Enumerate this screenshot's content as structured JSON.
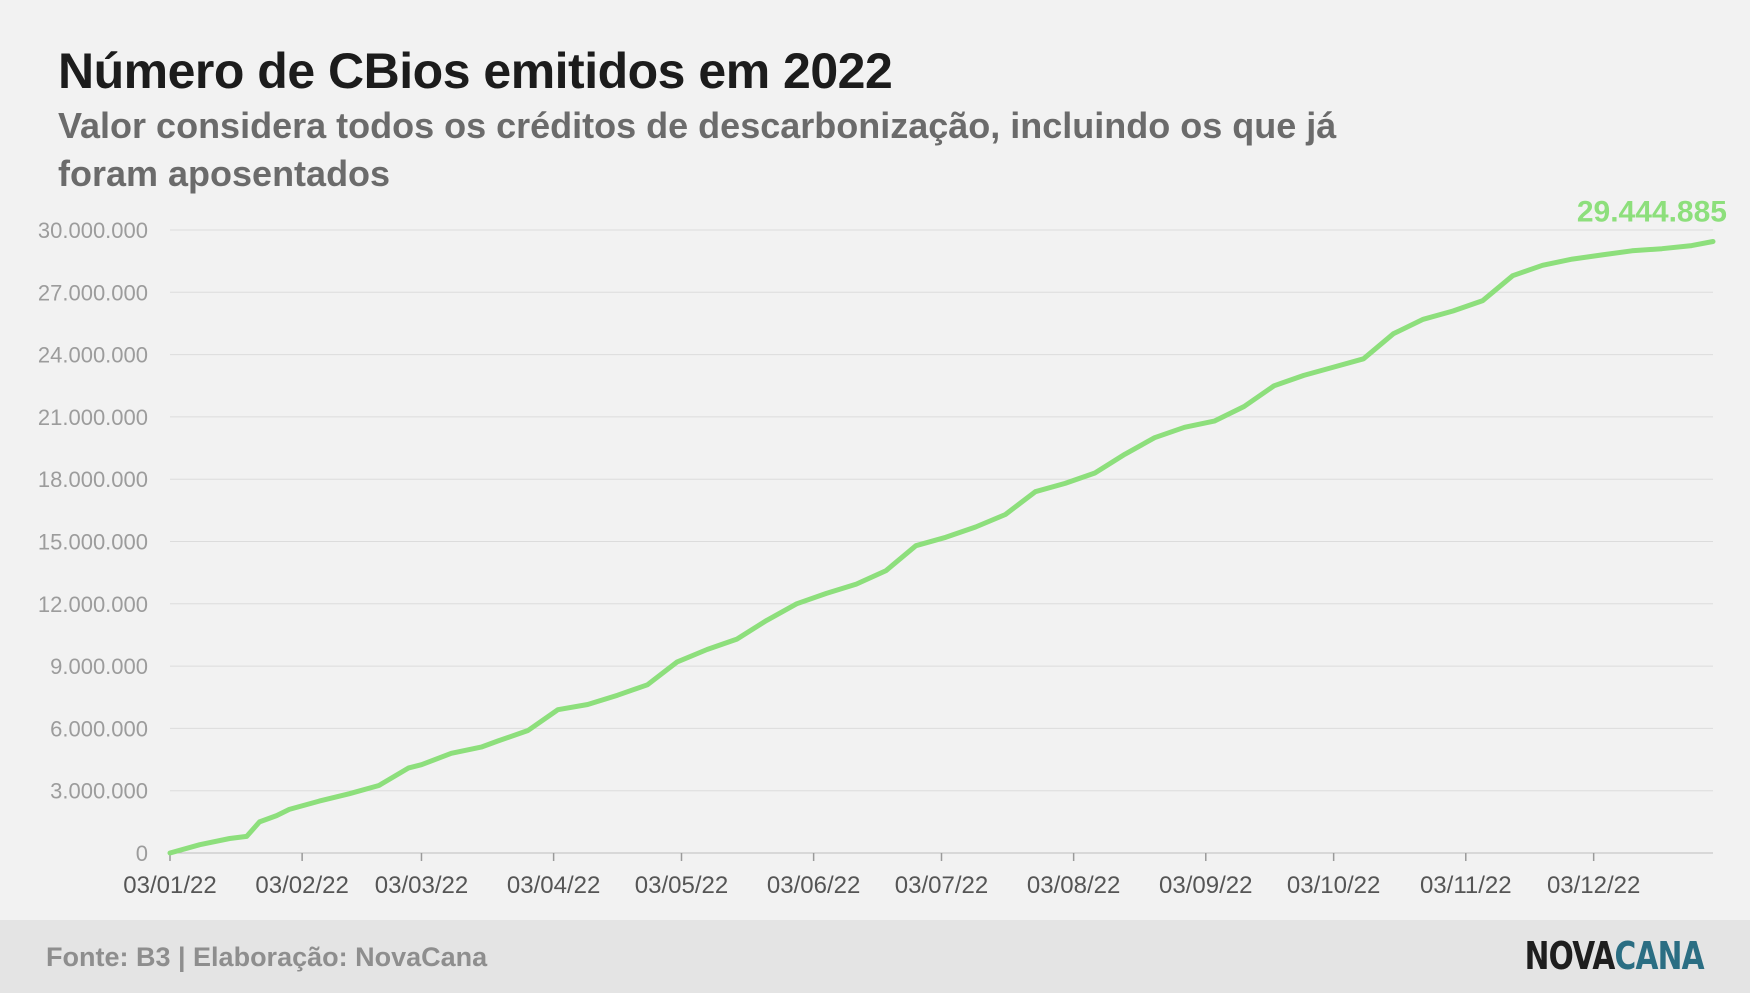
{
  "header": {
    "title": "Número de CBios emitidos em 2022",
    "subtitle": "Valor considera todos os créditos de descarbonização, incluindo os que já foram aposentados"
  },
  "footer": {
    "source": "Fonte: B3 | Elaboração: NovaCana",
    "logo_part1": "NOVA",
    "logo_part2": "CANA"
  },
  "colors": {
    "line": "#8ddf7c",
    "grid": "#dcdcdc",
    "background": "#f2f2f2"
  },
  "chart_data": {
    "type": "line",
    "title": "Número de CBios emitidos em 2022",
    "subtitle": "Valor considera todos os créditos de descarbonização, incluindo os que já foram aposentados",
    "xlabel": "",
    "ylabel": "",
    "ylim": [
      0,
      30000000
    ],
    "xlim": [
      "2022-01-03",
      "2022-12-31"
    ],
    "yticks": [
      0,
      3000000,
      6000000,
      9000000,
      12000000,
      15000000,
      18000000,
      21000000,
      24000000,
      27000000,
      30000000
    ],
    "ytick_labels": [
      "0",
      "3.000.000",
      "6.000.000",
      "9.000.000",
      "12.000.000",
      "15.000.000",
      "18.000.000",
      "21.000.000",
      "24.000.000",
      "27.000.000",
      "30.000.000"
    ],
    "xticks": [
      "2022-01-03",
      "2022-02-03",
      "2022-03-03",
      "2022-04-03",
      "2022-05-03",
      "2022-06-03",
      "2022-07-03",
      "2022-08-03",
      "2022-09-03",
      "2022-10-03",
      "2022-11-03",
      "2022-12-03"
    ],
    "xtick_labels": [
      "03/01/22",
      "03/02/22",
      "03/03/22",
      "03/04/22",
      "03/05/22",
      "03/06/22",
      "03/07/22",
      "03/08/22",
      "03/09/22",
      "03/10/22",
      "03/11/22",
      "03/12/22"
    ],
    "grid": true,
    "end_label": "29.444.885",
    "series": [
      {
        "x": [
          "2022-01-03",
          "2022-01-10",
          "2022-01-17",
          "2022-01-21",
          "2022-01-24",
          "2022-01-28",
          "2022-01-31",
          "2022-02-07",
          "2022-02-14",
          "2022-02-21",
          "2022-02-28",
          "2022-03-03",
          "2022-03-10",
          "2022-03-17",
          "2022-03-21",
          "2022-03-28",
          "2022-04-04",
          "2022-04-11",
          "2022-04-18",
          "2022-04-25",
          "2022-05-02",
          "2022-05-09",
          "2022-05-16",
          "2022-05-23",
          "2022-05-30",
          "2022-06-06",
          "2022-06-13",
          "2022-06-20",
          "2022-06-27",
          "2022-07-04",
          "2022-07-11",
          "2022-07-18",
          "2022-07-25",
          "2022-08-01",
          "2022-08-08",
          "2022-08-15",
          "2022-08-22",
          "2022-08-29",
          "2022-09-05",
          "2022-09-12",
          "2022-09-19",
          "2022-09-26",
          "2022-10-03",
          "2022-10-10",
          "2022-10-17",
          "2022-10-24",
          "2022-10-31",
          "2022-11-07",
          "2022-11-14",
          "2022-11-21",
          "2022-11-28",
          "2022-12-05",
          "2022-12-12",
          "2022-12-19",
          "2022-12-26",
          "2022-12-31"
        ],
        "y": [
          0,
          400000,
          700000,
          800000,
          1500000,
          1800000,
          2100000,
          2500000,
          2850000,
          3250000,
          4100000,
          4250000,
          4800000,
          5100000,
          5400000,
          5900000,
          6900000,
          7150000,
          7600000,
          8100000,
          9200000,
          9800000,
          10300000,
          11200000,
          12000000,
          12500000,
          12950000,
          13600000,
          14800000,
          15200000,
          15700000,
          16300000,
          17400000,
          17800000,
          18300000,
          19200000,
          20000000,
          20500000,
          20800000,
          21500000,
          22500000,
          23000000,
          23400000,
          23800000,
          25000000,
          25700000,
          26100000,
          26600000,
          27800000,
          28300000,
          28600000,
          28800000,
          29000000,
          29100000,
          29250000,
          29444885
        ]
      }
    ]
  }
}
